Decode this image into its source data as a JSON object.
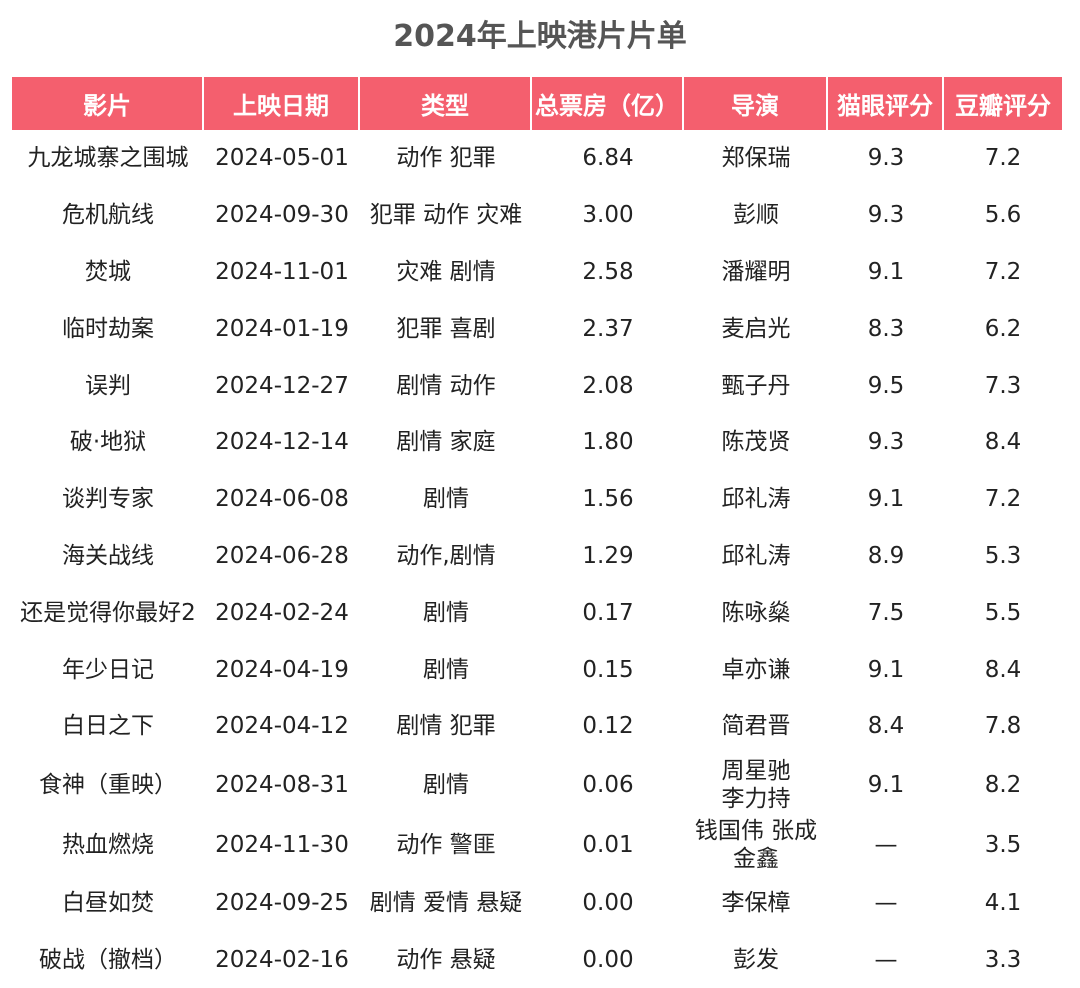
{
  "title": "2024年上映港片片单",
  "colors": {
    "header_bg": "#f45f6e",
    "header_text": "#ffffff"
  },
  "table": {
    "headers": [
      "影片",
      "上映日期",
      "类型",
      "总票房（亿）",
      "导演",
      "猫眼评分",
      "豆瓣评分"
    ],
    "rows": [
      {
        "film": "九龙城寨之围城",
        "date": "2024-05-01",
        "genre": "动作 犯罪",
        "box_office": "6.84",
        "director": [
          "郑保瑞"
        ],
        "maoyan": "9.3",
        "douban": "7.2"
      },
      {
        "film": "危机航线",
        "date": "2024-09-30",
        "genre": "犯罪 动作 灾难",
        "box_office": "3.00",
        "director": [
          "彭顺"
        ],
        "maoyan": "9.3",
        "douban": "5.6"
      },
      {
        "film": "焚城",
        "date": "2024-11-01",
        "genre": "灾难 剧情",
        "box_office": "2.58",
        "director": [
          "潘耀明"
        ],
        "maoyan": "9.1",
        "douban": "7.2"
      },
      {
        "film": "临时劫案",
        "date": "2024-01-19",
        "genre": "犯罪 喜剧",
        "box_office": "2.37",
        "director": [
          "麦启光"
        ],
        "maoyan": "8.3",
        "douban": "6.2"
      },
      {
        "film": "误判",
        "date": "2024-12-27",
        "genre": "剧情 动作",
        "box_office": "2.08",
        "director": [
          "甄子丹"
        ],
        "maoyan": "9.5",
        "douban": "7.3"
      },
      {
        "film": "破·地狱",
        "date": "2024-12-14",
        "genre": "剧情 家庭",
        "box_office": "1.80",
        "director": [
          "陈茂贤"
        ],
        "maoyan": "9.3",
        "douban": "8.4"
      },
      {
        "film": "谈判专家",
        "date": "2024-06-08",
        "genre": "剧情",
        "box_office": "1.56",
        "director": [
          "邱礼涛"
        ],
        "maoyan": "9.1",
        "douban": "7.2"
      },
      {
        "film": "海关战线",
        "date": "2024-06-28",
        "genre": "动作,剧情",
        "box_office": "1.29",
        "director": [
          "邱礼涛"
        ],
        "maoyan": "8.9",
        "douban": "5.3"
      },
      {
        "film": "还是觉得你最好2",
        "date": "2024-02-24",
        "genre": "剧情",
        "box_office": "0.17",
        "director": [
          "陈咏燊"
        ],
        "maoyan": "7.5",
        "douban": "5.5"
      },
      {
        "film": "年少日记",
        "date": "2024-04-19",
        "genre": "剧情",
        "box_office": "0.15",
        "director": [
          "卓亦谦"
        ],
        "maoyan": "9.1",
        "douban": "8.4"
      },
      {
        "film": "白日之下",
        "date": "2024-04-12",
        "genre": "剧情 犯罪",
        "box_office": "0.12",
        "director": [
          "简君晋"
        ],
        "maoyan": "8.4",
        "douban": "7.8"
      },
      {
        "film": "食神（重映）",
        "date": "2024-08-31",
        "genre": "剧情",
        "box_office": "0.06",
        "director": [
          "周星驰",
          "李力持"
        ],
        "maoyan": "9.1",
        "douban": "8.2"
      },
      {
        "film": "热血燃烧",
        "date": "2024-11-30",
        "genre": "动作 警匪",
        "box_office": "0.01",
        "director": [
          "钱国伟 张成",
          "金鑫"
        ],
        "maoyan": "—",
        "douban": "3.5"
      },
      {
        "film": "白昼如焚",
        "date": "2024-09-25",
        "genre": "剧情 爱情 悬疑",
        "box_office": "0.00",
        "director": [
          "李保樟"
        ],
        "maoyan": "—",
        "douban": "4.1"
      },
      {
        "film": "破战（撤档）",
        "date": "2024-02-16",
        "genre": "动作 悬疑",
        "box_office": "0.00",
        "director": [
          "彭发"
        ],
        "maoyan": "—",
        "douban": "3.3"
      }
    ]
  }
}
